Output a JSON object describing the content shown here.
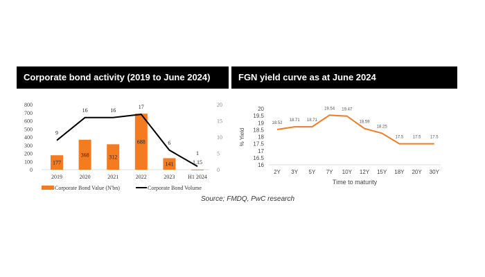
{
  "chart_data": [
    {
      "type": "bar+line",
      "title": "Corporate bond activity (2019 to June 2024)",
      "categories": [
        "2019",
        "2020",
        "2021",
        "2022",
        "2023",
        "H1 2024"
      ],
      "series": [
        {
          "name": "Corporate Bond Value (N'bn)",
          "type": "bar",
          "axis": "left",
          "color": "#F47C20",
          "values": [
            177,
            368,
            312,
            688,
            141,
            1.15
          ],
          "labels": [
            "177",
            "368",
            "312",
            "688",
            "141",
            "1.15"
          ]
        },
        {
          "name": "Corporate Bond Volume",
          "type": "line",
          "axis": "right",
          "color": "#000000",
          "values": [
            9,
            16,
            16,
            17,
            6,
            1
          ],
          "labels": [
            "9",
            "16",
            "16",
            "17",
            "6",
            "1"
          ]
        }
      ],
      "ylim_left": [
        0,
        800
      ],
      "yticks_left": [
        "0",
        "100",
        "200",
        "300",
        "400",
        "500",
        "600",
        "700",
        "800"
      ],
      "ylim_right": [
        0,
        20
      ],
      "yticks_right": [
        "0",
        "5",
        "10",
        "15",
        "20"
      ],
      "legend": "bottom",
      "grid": false
    },
    {
      "type": "line",
      "title": "FGN yield curve as at June 2024",
      "categories": [
        "2Y",
        "3Y",
        "5Y",
        "7Y",
        "10Y",
        "12Y",
        "15Y",
        "18Y",
        "20Y",
        "30Y"
      ],
      "series": [
        {
          "color": "#F47C20",
          "values": [
            18.52,
            18.71,
            18.71,
            19.54,
            19.47,
            18.59,
            18.25,
            17.5,
            17.5,
            17.5
          ],
          "labels": [
            "18.52",
            "18.71",
            "18.71",
            "19.54",
            "19.47",
            "18.59",
            "18.25",
            "17.5",
            "17.5",
            "17.5"
          ]
        }
      ],
      "xlabel": "Time to maturity",
      "ylabel": "% Yield",
      "ylim": [
        16,
        20
      ],
      "yticks": [
        "16",
        "16.5",
        "17",
        "17.5",
        "18",
        "18.5",
        "19",
        "19.5",
        "20"
      ],
      "legend": "none",
      "grid": false
    }
  ],
  "source": "Source; FMDQ, PwC research"
}
